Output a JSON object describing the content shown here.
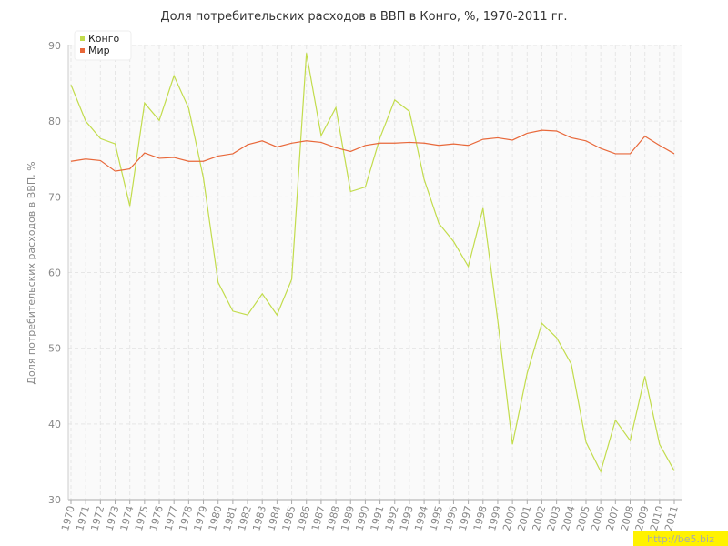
{
  "chart_data": {
    "type": "line",
    "title": "Доля потребительских расходов в ВВП в Конго, %, 1970-2011 гг.",
    "y_label": "Доля потребительских расходов в ВВП, %",
    "watermark": "http://be5.biz",
    "categories": [
      "1970",
      "1971",
      "1972",
      "1973",
      "1974",
      "1975",
      "1976",
      "1977",
      "1978",
      "1979",
      "1980",
      "1981",
      "1982",
      "1983",
      "1984",
      "1985",
      "1986",
      "1987",
      "1988",
      "1989",
      "1990",
      "1991",
      "1992",
      "1993",
      "1994",
      "1995",
      "1996",
      "1997",
      "1998",
      "1999",
      "2000",
      "2001",
      "2002",
      "2003",
      "2004",
      "2005",
      "2006",
      "2007",
      "2008",
      "2009",
      "2010",
      "2011"
    ],
    "series": [
      {
        "name": "Конго",
        "color": "#c2dc4c",
        "values": [
          84.8,
          80.0,
          77.7,
          77.0,
          68.8,
          82.4,
          80.1,
          86.0,
          81.7,
          72.5,
          58.7,
          54.9,
          54.4,
          57.2,
          54.4,
          59.1,
          89.0,
          78.1,
          81.8,
          70.7,
          71.3,
          77.8,
          82.8,
          81.3,
          72.3,
          66.5,
          64.1,
          60.8,
          68.5,
          53.7,
          37.3,
          46.7,
          53.3,
          51.4,
          47.9,
          37.6,
          33.7,
          40.5,
          37.8,
          46.3,
          37.3,
          33.8
        ]
      },
      {
        "name": "Мир",
        "color": "#e8683a",
        "values": [
          74.7,
          75.0,
          74.8,
          73.4,
          73.7,
          75.8,
          75.1,
          75.2,
          74.7,
          74.7,
          75.4,
          75.7,
          76.9,
          77.4,
          76.6,
          77.1,
          77.4,
          77.2,
          76.5,
          76.0,
          76.8,
          77.1,
          77.1,
          77.2,
          77.1,
          76.8,
          77.0,
          76.8,
          77.6,
          77.8,
          77.5,
          78.4,
          78.8,
          78.7,
          77.8,
          77.4,
          76.4,
          75.7,
          75.7,
          78.0,
          76.8,
          75.7
        ]
      }
    ],
    "ylim": [
      30,
      90
    ],
    "yticks": [
      30,
      40,
      50,
      60,
      70,
      80,
      90
    ],
    "grid": true,
    "legend": "top-left"
  }
}
